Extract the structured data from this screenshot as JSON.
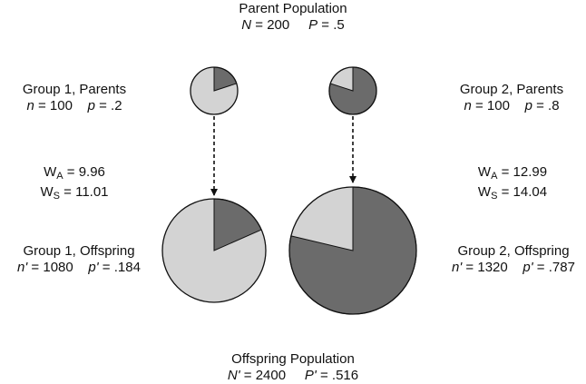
{
  "parent_population": {
    "title": "Parent Population",
    "n_symbol": "N",
    "n_value": "200",
    "p_symbol": "P",
    "p_value": ".5"
  },
  "group1_parents": {
    "title": "Group 1, Parents",
    "n_symbol": "n",
    "n_value": "100",
    "p_symbol": "p",
    "p_value": ".2",
    "p_numeric": 0.2
  },
  "group2_parents": {
    "title": "Group 2, Parents",
    "n_symbol": "n",
    "n_value": "100",
    "p_symbol": "p",
    "p_value": ".8",
    "p_numeric": 0.8
  },
  "group1_fitness": {
    "wa_letter": "W",
    "wa_sub": "A",
    "wa_value": "9.96",
    "ws_letter": "W",
    "ws_sub": "S",
    "ws_value": "11.01"
  },
  "group2_fitness": {
    "wa_letter": "W",
    "wa_sub": "A",
    "wa_value": "12.99",
    "ws_letter": "W",
    "ws_sub": "S",
    "ws_value": "14.04"
  },
  "group1_offspring": {
    "title": "Group 1, Offspring",
    "n_symbol": "n'",
    "n_value": "1080",
    "p_symbol": "p'",
    "p_value": ".184",
    "p_numeric": 0.184
  },
  "group2_offspring": {
    "title": "Group 2, Offspring",
    "n_symbol": "n'",
    "n_value": "1320",
    "p_symbol": "p'",
    "p_value": ".787",
    "p_numeric": 0.787
  },
  "offspring_population": {
    "title": "Offspring Population",
    "n_symbol": "N'",
    "n_value": "2400",
    "p_symbol": "P'",
    "p_value": ".516"
  },
  "colors": {
    "altruist": "#6b6b6b",
    "selfish": "#d3d3d3",
    "outline": "#111111"
  }
}
